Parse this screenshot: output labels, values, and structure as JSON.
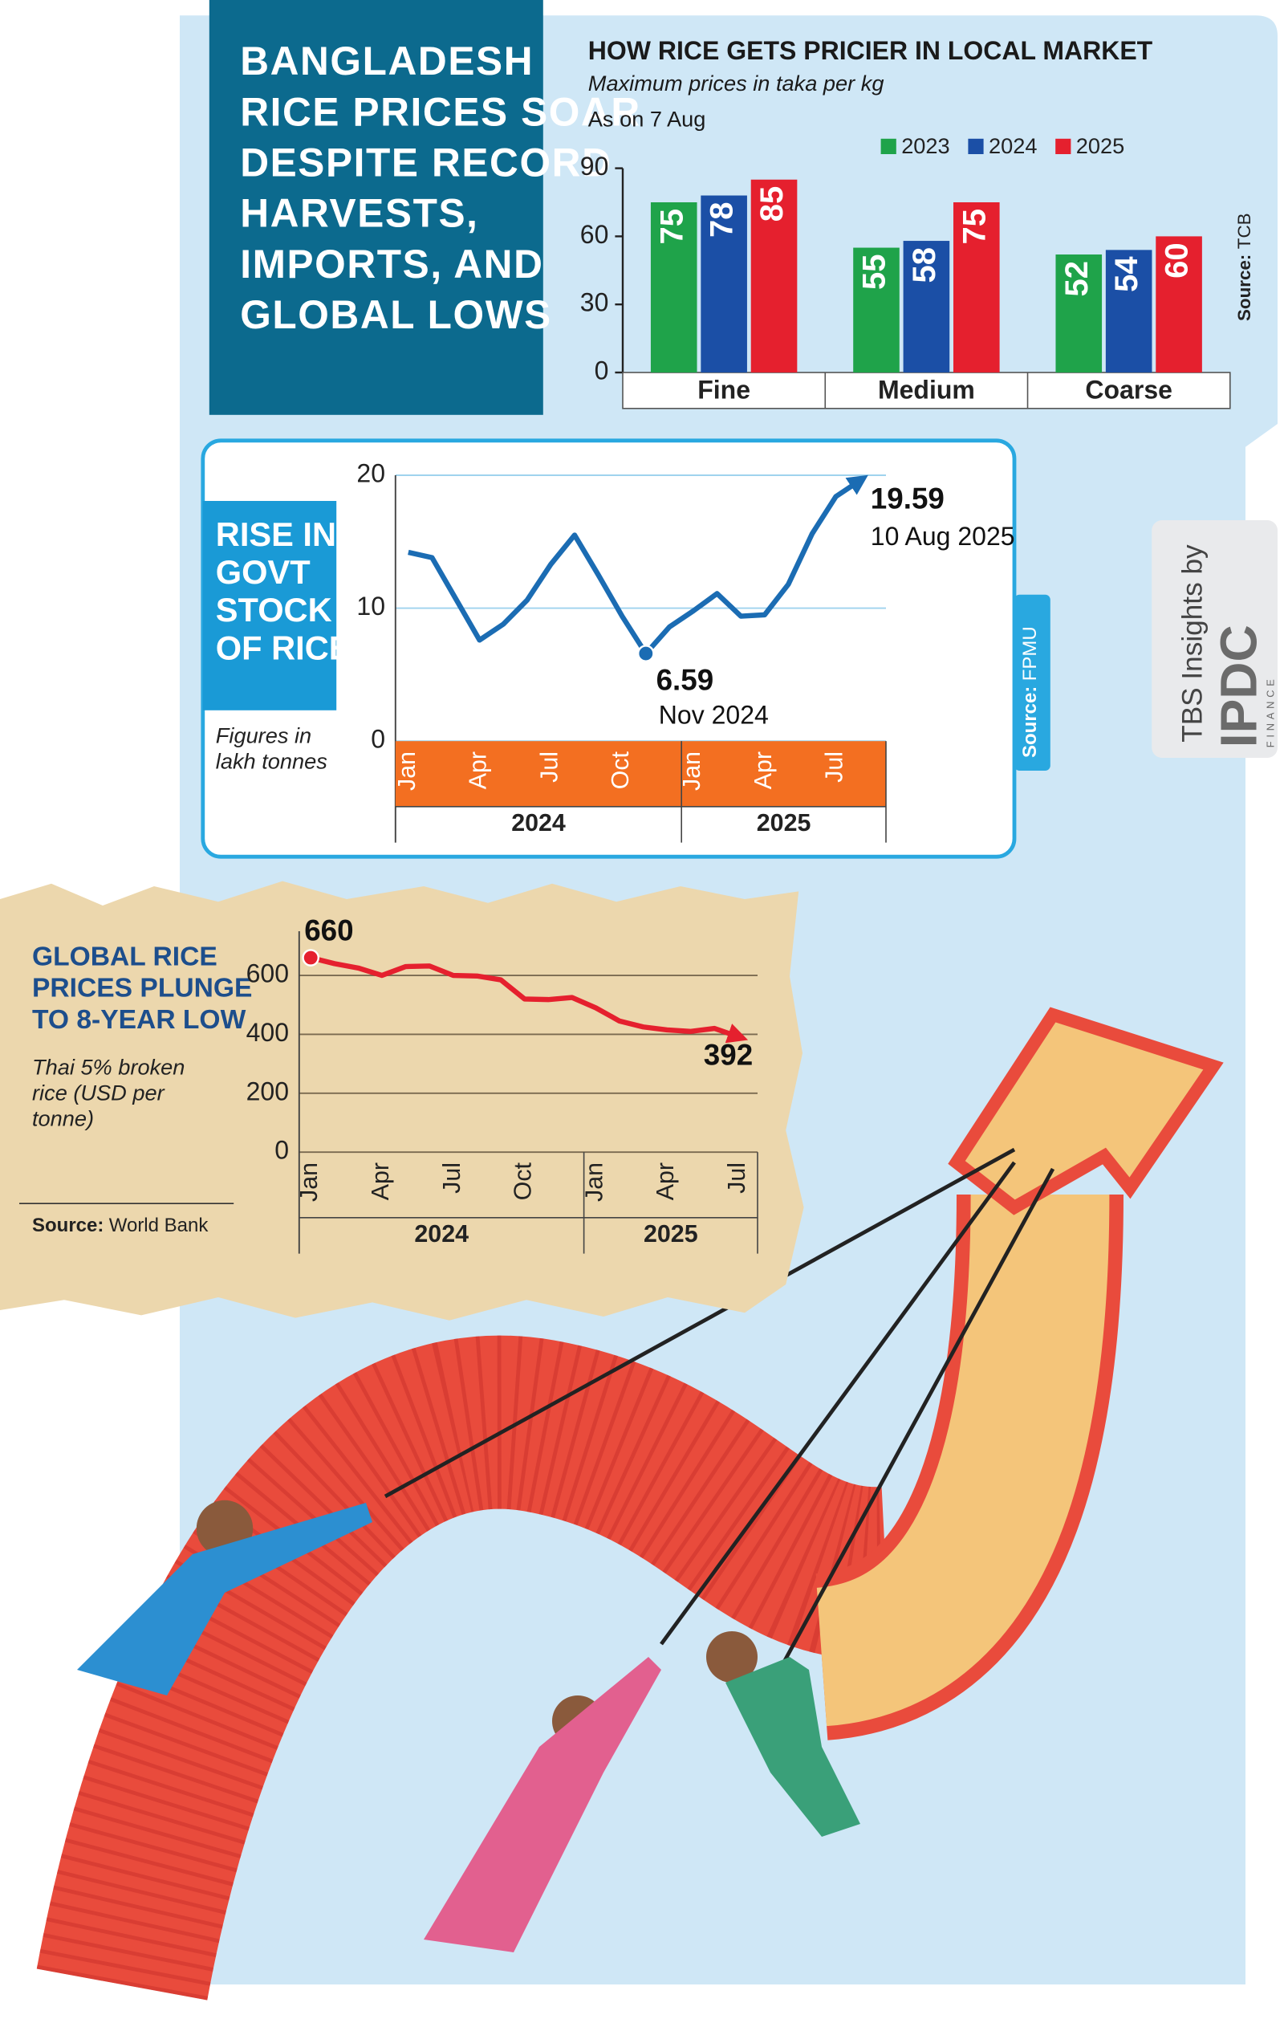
{
  "headline": [
    "BANGLADESH",
    "RICE PRICES SOAR",
    "DESPITE RECORD",
    "HARVESTS,",
    "IMPORTS, AND",
    "GLOBAL LOWS"
  ],
  "branding": {
    "by": "TBS Insights by",
    "logo": "IPDC",
    "logo_sub": "FINANCE"
  },
  "chart_data": [
    {
      "type": "bar",
      "title": "HOW RICE GETS PRICIER IN LOCAL MARKET",
      "subtitle": "Maximum prices in taka per kg",
      "note": "As on 7 Aug",
      "categories": [
        "Fine",
        "Medium",
        "Coarse"
      ],
      "series": [
        {
          "name": "2023",
          "color": "#1fa34a",
          "values": [
            75,
            55,
            52
          ]
        },
        {
          "name": "2024",
          "color": "#1b4fa6",
          "values": [
            78,
            58,
            54
          ]
        },
        {
          "name": "2025",
          "color": "#e5202e",
          "values": [
            85,
            75,
            60
          ]
        }
      ],
      "ylim": [
        0,
        90
      ],
      "yticks": [
        0,
        30,
        60,
        90
      ],
      "grid": false,
      "source": {
        "label": "Source:",
        "text": "TCB"
      }
    },
    {
      "type": "line",
      "title": [
        "RISE IN",
        "GOVT",
        "STOCK",
        "OF RICE"
      ],
      "note": [
        "Figures in",
        "lakh tonnes"
      ],
      "categories": [
        "Jan",
        null,
        null,
        "Apr",
        null,
        null,
        "Jul",
        null,
        null,
        "Oct",
        null,
        null,
        "Jan",
        null,
        null,
        "Apr",
        null,
        null,
        "Jul",
        null
      ],
      "groups": [
        "2024",
        "2025"
      ],
      "values": [
        14.2,
        13.8,
        10.7,
        7.6,
        8.8,
        10.6,
        13.3,
        15.5,
        12.5,
        9.4,
        6.59,
        8.6,
        9.8,
        11.1,
        9.4,
        9.5,
        11.8,
        15.6,
        18.4,
        19.59
      ],
      "color": "#1b6cb3",
      "ylim": [
        0,
        20
      ],
      "yticks": [
        0,
        10,
        20
      ],
      "grid": true,
      "annotations": [
        "10 Aug 2025",
        "Nov 2024"
      ],
      "source": {
        "label": "Source:",
        "text": "FPMU"
      }
    },
    {
      "type": "line",
      "title": [
        "GLOBAL RICE",
        "PRICES PLUNGE",
        "TO 8-YEAR LOW"
      ],
      "note": [
        "Thai 5% broken",
        "rice (USD per",
        "tonne)"
      ],
      "categories": [
        "Jan",
        null,
        null,
        "Apr",
        null,
        null,
        "Jul",
        null,
        null,
        "Oct",
        null,
        null,
        "Jan",
        null,
        null,
        "Apr",
        null,
        null,
        "Jul"
      ],
      "groups": [
        "2024",
        "2025"
      ],
      "values": [
        660,
        640,
        625,
        600,
        630,
        632,
        600,
        598,
        585,
        520,
        518,
        525,
        490,
        445,
        425,
        415,
        410,
        420,
        392
      ],
      "color": "#e5202e",
      "ylim": [
        0,
        750
      ],
      "yticks": [
        0,
        200,
        400,
        600
      ],
      "grid": true,
      "source": {
        "label": "Source:",
        "text": "World Bank"
      }
    }
  ]
}
